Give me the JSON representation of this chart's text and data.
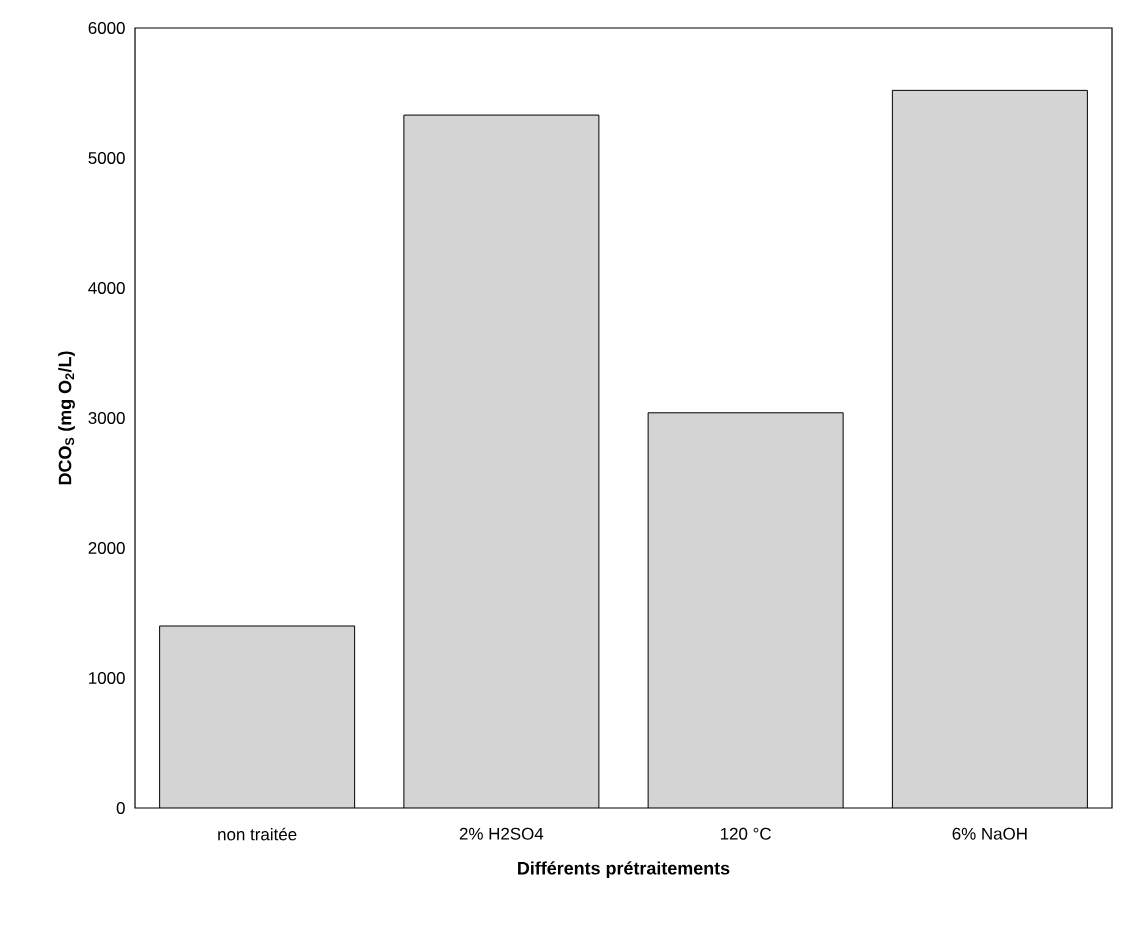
{
  "chart_data": {
    "type": "bar",
    "xlabel": "Différents prétraitements",
    "ylabel": "DCO$_{S}$ (mg O$_{2}$/L)",
    "categories": [
      "non traitée",
      "2% H2SO4",
      "120 °C",
      "6% NaOH"
    ],
    "values": [
      1400,
      5330,
      3040,
      5520
    ],
    "color": "#d4d4d4",
    "ylim": [
      0,
      6000
    ],
    "yticks": [
      0,
      1000,
      2000,
      3000,
      4000,
      5000,
      6000
    ],
    "grid": false
  }
}
